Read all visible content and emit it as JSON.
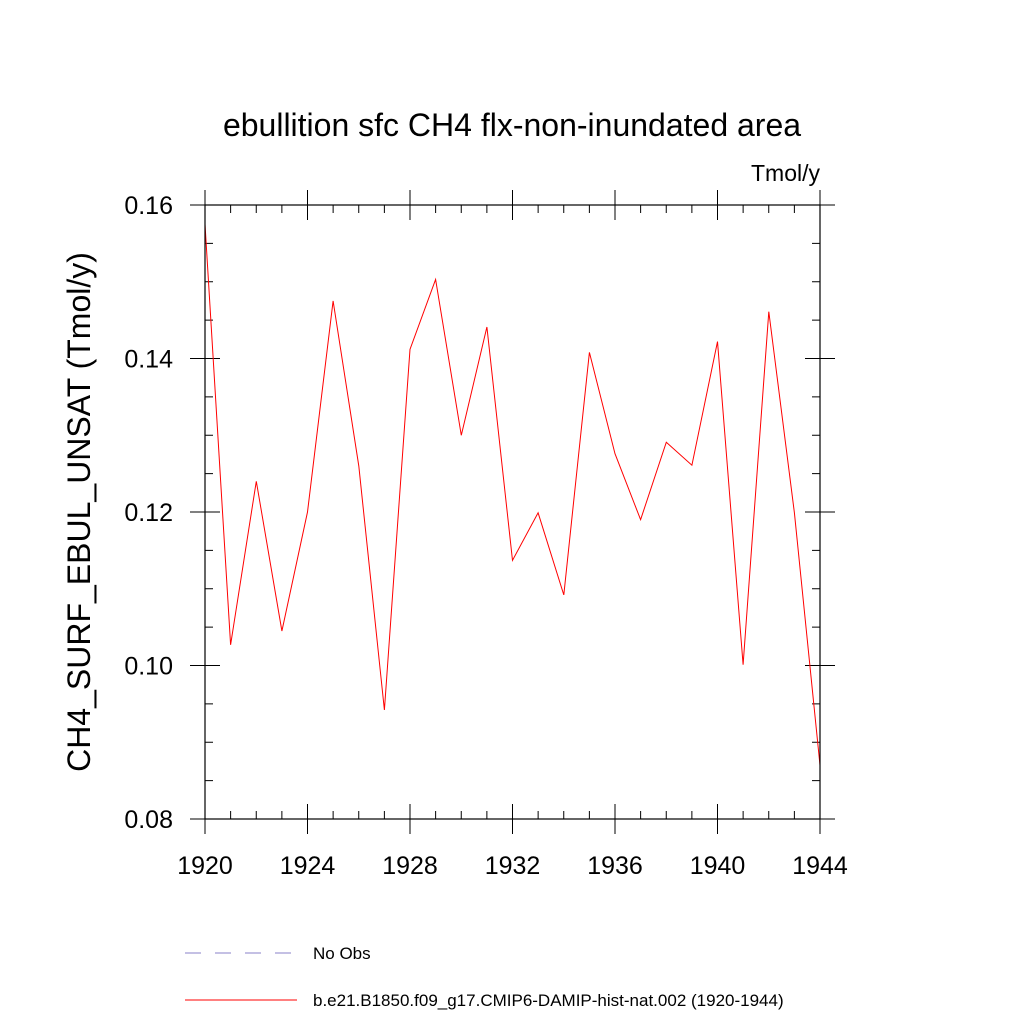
{
  "chart_data": {
    "type": "line",
    "title": "ebullition sfc CH4 flx-non-inundated area",
    "units_label": "Tmol/y",
    "xlabel": "",
    "ylabel": "CH4_SURF_EBUL_UNSAT  (Tmol/y)",
    "xlim": [
      1920,
      1944
    ],
    "ylim": [
      0.08,
      0.16
    ],
    "x_ticks": [
      1920,
      1924,
      1928,
      1932,
      1936,
      1940,
      1944
    ],
    "x_tick_labels": [
      "1920",
      "1924",
      "1928",
      "1932",
      "1936",
      "1940",
      "1944"
    ],
    "y_ticks": [
      0.08,
      0.1,
      0.12,
      0.14,
      0.16
    ],
    "y_tick_labels": [
      "0.08",
      "0.10",
      "0.12",
      "0.14",
      "0.16"
    ],
    "x_minor_step": 1,
    "y_minor_step": 0.005,
    "grid": false,
    "legend_position": "bottom",
    "series": [
      {
        "name": "b.e21.B1850.f09_g17.CMIP6-DAMIP-hist-nat.002 (1920-1944)",
        "color": "#ff0000",
        "style": "solid",
        "x": [
          1920,
          1921,
          1922,
          1923,
          1924,
          1925,
          1926,
          1927,
          1928,
          1929,
          1930,
          1931,
          1932,
          1933,
          1934,
          1935,
          1936,
          1937,
          1938,
          1939,
          1940,
          1941,
          1942,
          1943,
          1944
        ],
        "y": [
          0.1575,
          0.1027,
          0.124,
          0.1045,
          0.12,
          0.1475,
          0.126,
          0.0942,
          0.1412,
          0.1503,
          0.13,
          0.1441,
          0.1137,
          0.1199,
          0.1092,
          0.1408,
          0.1276,
          0.119,
          0.1291,
          0.1261,
          0.1422,
          0.1001,
          0.1461,
          0.1199,
          0.087
        ]
      }
    ],
    "legend": [
      {
        "label": "No Obs",
        "color": "#8a82c8",
        "style": "dashed"
      },
      {
        "label": "b.e21.B1850.f09_g17.CMIP6-DAMIP-hist-nat.002 (1920-1944)",
        "color": "#ff0000",
        "style": "solid"
      }
    ]
  }
}
